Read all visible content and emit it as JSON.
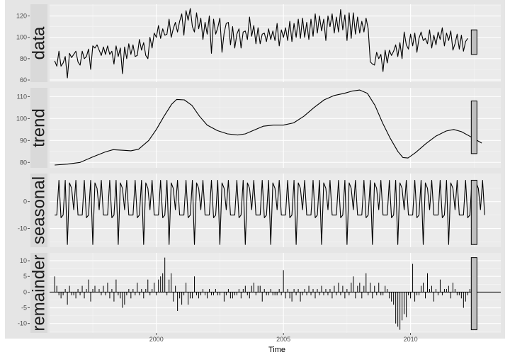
{
  "chart_data": {
    "type": "line",
    "xlabel": "Time",
    "x_ticks": [
      2000,
      2005,
      2010
    ],
    "xlim": [
      1995.8,
      2013.55
    ],
    "legend": "none",
    "grid": true,
    "panels": [
      {
        "name": "data",
        "ylim": [
          58,
          131
        ],
        "y_ticks": [
          60,
          80,
          100,
          120
        ],
        "style": "line",
        "x_start": 1996.0,
        "x_step": 0.08333,
        "range_bar": [
          84,
          107
        ],
        "values": [
          78,
          73,
          87,
          73,
          76,
          82,
          62,
          85,
          81,
          84,
          87,
          77,
          74,
          87,
          80,
          82,
          89,
          70,
          92,
          90,
          93,
          88,
          83,
          91,
          84,
          92,
          84,
          87,
          75,
          92,
          82,
          90,
          66,
          91,
          80,
          94,
          84,
          93,
          82,
          83,
          98,
          88,
          95,
          83,
          80,
          100,
          90,
          104,
          100,
          111,
          99,
          108,
          102,
          103,
          117,
          100,
          108,
          114,
          105,
          115,
          122,
          102,
          125,
          116,
          127,
          110,
          105,
          123,
          108,
          118,
          98,
          114,
          103,
          120,
          85,
          117,
          103,
          109,
          118,
          86,
          104,
          113,
          114,
          93,
          110,
          90,
          103,
          108,
          90,
          105,
          106,
          98,
          119,
          101,
          111,
          94,
          109,
          94,
          103,
          104,
          96,
          108,
          98,
          106,
          97,
          113,
          92,
          107,
          100,
          109,
          97,
          115,
          96,
          113,
          100,
          117,
          99,
          118,
          100,
          114,
          98,
          117,
          101,
          122,
          104,
          120,
          106,
          117,
          97,
          120,
          110,
          122,
          104,
          119,
          105,
          126,
          107,
          121,
          97,
          123,
          99,
          123,
          103,
          119,
          104,
          115,
          105,
          118,
          108,
          77,
          75,
          74,
          86,
          80,
          84,
          68,
          88,
          76,
          88,
          83,
          87,
          93,
          82,
          95,
          80,
          105,
          93,
          89,
          103,
          92,
          104,
          86,
          99,
          105,
          97,
          99,
          94,
          107,
          90,
          102,
          93,
          105,
          98,
          109,
          92,
          104,
          97,
          106,
          88,
          94,
          103,
          89,
          102,
          87,
          96,
          99
        ]
      },
      {
        "name": "trend",
        "ylim": [
          77.5,
          114
        ],
        "y_ticks": [
          80,
          90,
          100,
          110
        ],
        "style": "line",
        "range_bar": [
          84,
          108
        ],
        "points": [
          [
            1996.0,
            78.8
          ],
          [
            1996.5,
            79.2
          ],
          [
            1997.0,
            80.0
          ],
          [
            1997.5,
            82.5
          ],
          [
            1998.0,
            84.8
          ],
          [
            1998.3,
            85.8
          ],
          [
            1998.7,
            85.5
          ],
          [
            1999.0,
            85.3
          ],
          [
            1999.3,
            86.0
          ],
          [
            1999.7,
            90.0
          ],
          [
            2000.0,
            95.0
          ],
          [
            2000.3,
            101.0
          ],
          [
            2000.6,
            106.5
          ],
          [
            2000.8,
            108.7
          ],
          [
            2001.1,
            108.5
          ],
          [
            2001.4,
            106.0
          ],
          [
            2001.7,
            101.0
          ],
          [
            2002.0,
            97.0
          ],
          [
            2002.4,
            94.5
          ],
          [
            2002.8,
            93.0
          ],
          [
            2003.2,
            92.5
          ],
          [
            2003.5,
            93.0
          ],
          [
            2003.8,
            94.5
          ],
          [
            2004.2,
            96.5
          ],
          [
            2004.6,
            97.0
          ],
          [
            2005.0,
            97.0
          ],
          [
            2005.4,
            98.0
          ],
          [
            2005.8,
            101.0
          ],
          [
            2006.2,
            105.0
          ],
          [
            2006.6,
            108.5
          ],
          [
            2007.0,
            110.5
          ],
          [
            2007.4,
            111.5
          ],
          [
            2007.7,
            112.5
          ],
          [
            2008.0,
            113.0
          ],
          [
            2008.3,
            111.5
          ],
          [
            2008.6,
            106.0
          ],
          [
            2008.9,
            98.0
          ],
          [
            2009.2,
            91.0
          ],
          [
            2009.5,
            85.0
          ],
          [
            2009.7,
            82.2
          ],
          [
            2009.9,
            82.0
          ],
          [
            2010.2,
            84.5
          ],
          [
            2010.6,
            88.5
          ],
          [
            2011.0,
            92.0
          ],
          [
            2011.4,
            94.3
          ],
          [
            2011.7,
            95.0
          ],
          [
            2012.0,
            94.0
          ],
          [
            2012.4,
            91.5
          ],
          [
            2012.8,
            88.8
          ]
        ]
      },
      {
        "name": "seasonal",
        "ylim": [
          -17,
          10.5
        ],
        "y_ticks": [
          -10,
          0
        ],
        "style": "line",
        "x_start": 1996.0,
        "x_step": 0.08333,
        "range_bar": [
          -16,
          8
        ],
        "pattern": [
          -5,
          -5,
          8,
          -6,
          -5,
          8,
          -16,
          7,
          5,
          -3,
          8,
          -5
        ]
      },
      {
        "name": "remainder",
        "ylim": [
          -13,
          12.5
        ],
        "y_ticks": [
          -10,
          -5,
          0,
          5,
          10
        ],
        "style": "bars",
        "x_start": 1996.0,
        "x_step": 0.08333,
        "range_bar": [
          -12,
          11
        ],
        "values": [
          5,
          2,
          -1,
          -2,
          -1,
          1,
          -4,
          2,
          -1,
          -1,
          -2,
          1,
          -1,
          2,
          -2,
          1,
          4,
          -3,
          1,
          2,
          0,
          1,
          -1,
          2,
          -1,
          3,
          -2,
          1,
          -3,
          4,
          -1,
          -2,
          -5,
          -4,
          -1,
          1,
          -2,
          1,
          -1,
          3,
          -1,
          1,
          -2,
          1,
          4,
          -1,
          1,
          3,
          -1,
          4,
          5,
          6,
          11,
          -1,
          4,
          6,
          -3,
          2,
          -6,
          -2,
          -4,
          -1,
          3,
          -4,
          -2,
          -2,
          5,
          -1,
          -2,
          -1,
          1,
          -1,
          -2,
          1,
          -1,
          -1,
          1,
          -1,
          -1,
          0,
          -3,
          -1,
          1,
          -2,
          -2,
          -1,
          -1,
          1,
          -2,
          1,
          2,
          -1,
          -2,
          2,
          3,
          -1,
          2,
          2,
          -3,
          1,
          -1,
          -1,
          1,
          -1,
          -1,
          -1,
          1,
          -1,
          7,
          -2,
          1,
          -2,
          -3,
          1,
          -1,
          1,
          -3,
          -1,
          1,
          -1,
          2,
          -1,
          1,
          -2,
          1,
          -1,
          2,
          -1,
          1,
          -1,
          1,
          -2,
          2,
          -1,
          3,
          -1,
          2,
          -2,
          1,
          -1,
          3,
          5,
          -2,
          2,
          3,
          -2,
          2,
          6,
          -1,
          3,
          -2,
          2,
          -1,
          3,
          -1,
          -1,
          2,
          1,
          -2,
          -3,
          -4,
          -10,
          -11,
          -12,
          -9,
          -7,
          -8,
          -1,
          -2,
          9,
          -3,
          -1,
          -1,
          2,
          3,
          -2,
          6,
          1,
          2,
          -3,
          1,
          -1,
          4,
          -1,
          1,
          1,
          2,
          -2,
          3,
          1,
          -1,
          -1,
          -2,
          -5,
          -3,
          -1,
          1,
          -2,
          -1,
          1
        ]
      }
    ]
  }
}
